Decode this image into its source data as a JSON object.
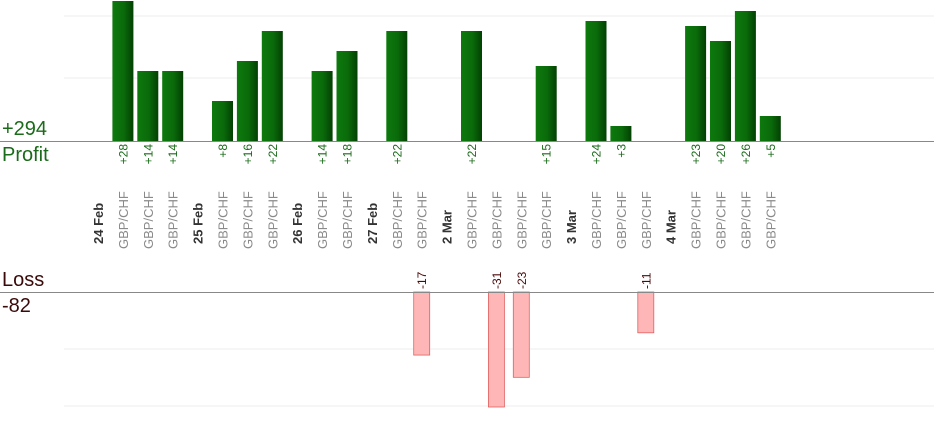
{
  "colors": {
    "profit_bar": "#0a6a0a",
    "profit_bar_dark": "#034003",
    "profit_text": "#1a6b1a",
    "loss_bar": "#ffb6b6",
    "loss_border": "#e06060",
    "loss_text": "#4a0a0a",
    "gridline": "#eeeeee",
    "axis": "#888888"
  },
  "summary": {
    "profit_total": "+294",
    "profit_label": "Profit",
    "loss_label": "Loss",
    "loss_total": "-82"
  },
  "chart_data": {
    "type": "bar",
    "title": "",
    "xlabel": "",
    "ylabel": "",
    "grid": true,
    "profit_ylim": [
      0,
      28
    ],
    "loss_ylim": [
      -31,
      0
    ],
    "slots": [
      {
        "kind": "date",
        "label": "24 Feb"
      },
      {
        "kind": "trade",
        "label": "GBP/CHF",
        "value": 28,
        "value_label": "+28"
      },
      {
        "kind": "trade",
        "label": "GBP/CHF",
        "value": 14,
        "value_label": "+14"
      },
      {
        "kind": "trade",
        "label": "GBP/CHF",
        "value": 14,
        "value_label": "+14"
      },
      {
        "kind": "date",
        "label": "25 Feb"
      },
      {
        "kind": "trade",
        "label": "GBP/CHF",
        "value": 8,
        "value_label": "+8"
      },
      {
        "kind": "trade",
        "label": "GBP/CHF",
        "value": 16,
        "value_label": "+16"
      },
      {
        "kind": "trade",
        "label": "GBP/CHF",
        "value": 22,
        "value_label": "+22"
      },
      {
        "kind": "date",
        "label": "26 Feb"
      },
      {
        "kind": "trade",
        "label": "GBP/CHF",
        "value": 14,
        "value_label": "+14"
      },
      {
        "kind": "trade",
        "label": "GBP/CHF",
        "value": 18,
        "value_label": "+18"
      },
      {
        "kind": "date",
        "label": "27 Feb"
      },
      {
        "kind": "trade",
        "label": "GBP/CHF",
        "value": 22,
        "value_label": "+22"
      },
      {
        "kind": "trade",
        "label": "GBP/CHF",
        "value": -17,
        "value_label": "-17"
      },
      {
        "kind": "date",
        "label": "2 Mar"
      },
      {
        "kind": "trade",
        "label": "GBP/CHF",
        "value": 22,
        "value_label": "+22"
      },
      {
        "kind": "trade",
        "label": "GBP/CHF",
        "value": -31,
        "value_label": "-31"
      },
      {
        "kind": "trade",
        "label": "GBP/CHF",
        "value": -23,
        "value_label": "-23"
      },
      {
        "kind": "trade",
        "label": "GBP/CHF",
        "value": 15,
        "value_label": "+15"
      },
      {
        "kind": "date",
        "label": "3 Mar"
      },
      {
        "kind": "trade",
        "label": "GBP/CHF",
        "value": 24,
        "value_label": "+24"
      },
      {
        "kind": "trade",
        "label": "GBP/CHF",
        "value": 3,
        "value_label": "+3"
      },
      {
        "kind": "trade",
        "label": "GBP/CHF",
        "value": -11,
        "value_label": "-11"
      },
      {
        "kind": "date",
        "label": "4 Mar"
      },
      {
        "kind": "trade",
        "label": "GBP/CHF",
        "value": 23,
        "value_label": "+23"
      },
      {
        "kind": "trade",
        "label": "GBP/CHF",
        "value": 20,
        "value_label": "+20"
      },
      {
        "kind": "trade",
        "label": "GBP/CHF",
        "value": 26,
        "value_label": "+26"
      },
      {
        "kind": "trade",
        "label": "GBP/CHF",
        "value": 5,
        "value_label": "+5"
      }
    ]
  }
}
